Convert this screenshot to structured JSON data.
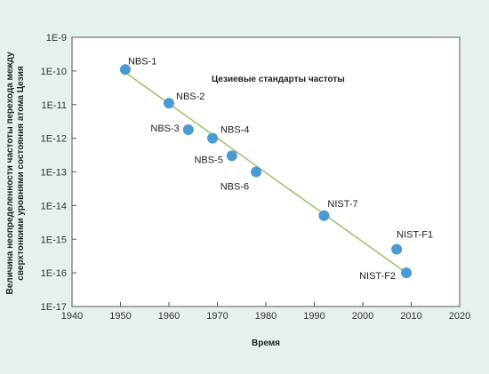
{
  "chart_data": {
    "type": "scatter",
    "title": "Цезиевые стандарты частоты",
    "xlabel": "Время",
    "ylabel_lines": [
      "Величина неопределенности частоты перехода между",
      "сверхтонкими уровнями состояния атома Цезия"
    ],
    "xlim": [
      1940,
      2020
    ],
    "x_ticks": [
      "1940",
      "1950",
      "1960",
      "1970",
      "1980",
      "1990",
      "2000",
      "2010",
      "2020"
    ],
    "y_scale": "log",
    "ylim": [
      1e-17,
      1e-09
    ],
    "y_ticks": [
      "1E-9",
      "1E-10",
      "1E-11",
      "1E-12",
      "1E-13",
      "1E-14",
      "1E-15",
      "1E-16",
      "1E-17"
    ],
    "grid": false,
    "points": [
      {
        "label": "NBS-1",
        "x": 1951,
        "y": 1.1e-10
      },
      {
        "label": "NBS-2",
        "x": 1960,
        "y": 1.1e-11
      },
      {
        "label": "NBS-3",
        "x": 1964,
        "y": 1.8e-12
      },
      {
        "label": "NBS-4",
        "x": 1969,
        "y": 1e-12
      },
      {
        "label": "NBS-5",
        "x": 1973,
        "y": 3e-13
      },
      {
        "label": "NBS-6",
        "x": 1978,
        "y": 1e-13
      },
      {
        "label": "NIST-7",
        "x": 1992,
        "y": 5e-15
      },
      {
        "label": "NIST-F1",
        "x": 2007,
        "y": 5e-16
      },
      {
        "label": "NIST-F2",
        "x": 2009,
        "y": 1e-16
      }
    ],
    "trendline": {
      "x": [
        1951,
        2009
      ],
      "y": [
        9e-11,
        1e-16
      ]
    },
    "colors": {
      "background": "#e6f0ec",
      "plot_background": "#ffffff",
      "marker": "#4a9bd2",
      "trendline": "#9ebf6a"
    }
  }
}
